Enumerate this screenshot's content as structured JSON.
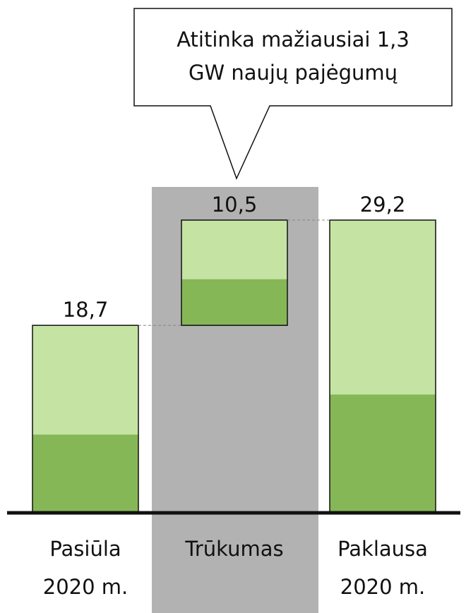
{
  "chart_data": {
    "type": "waterfall",
    "title": "",
    "xlabel": "",
    "ylabel": "",
    "ylim": [
      0,
      29.2
    ],
    "categories": [
      {
        "line1": "Pasiūla",
        "line2": "2020 m."
      },
      {
        "line1": "Trūkumas",
        "line2": ""
      },
      {
        "line1": "Paklausa",
        "line2": "2020 m."
      }
    ],
    "bars": [
      {
        "label": "18,7",
        "base": 0,
        "total": 18.7,
        "dark_portion": 7.8
      },
      {
        "label": "10,5",
        "base": 18.7,
        "total": 10.5,
        "dark_portion": 4.6
      },
      {
        "label": "29,2",
        "base": 0,
        "total": 29.2,
        "dark_portion": 11.8
      }
    ],
    "highlighted_category": 1,
    "connectors": true,
    "callout": {
      "line1": "Atitinka mažiausiai 1,3",
      "line2": "GW naujų pajėgumų"
    },
    "colors": {
      "light": "#c5e3a3",
      "dark": "#86b757",
      "highlight_band": "#b2b2b2",
      "outline": "#111111",
      "axis": "#111111",
      "connector": "#888888"
    }
  }
}
